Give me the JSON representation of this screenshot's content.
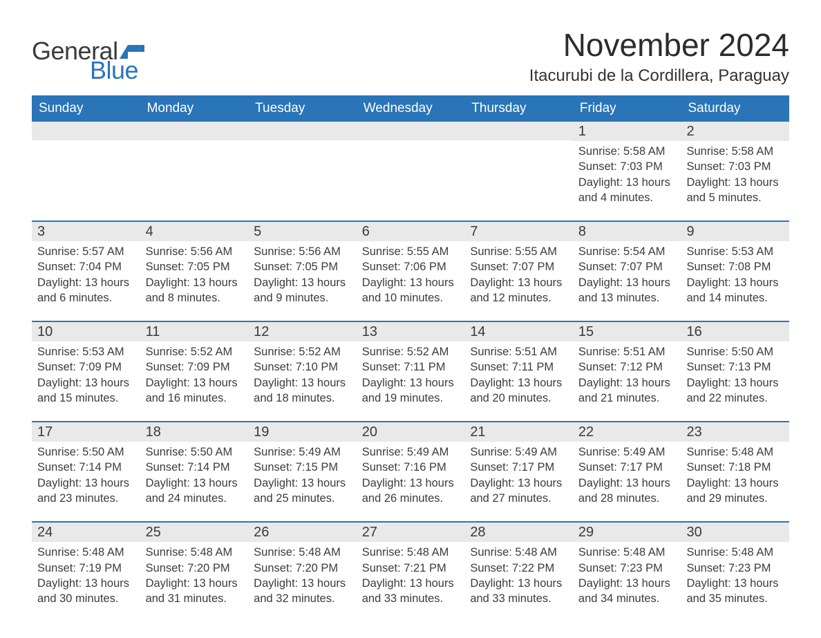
{
  "brand": {
    "word1": "General",
    "word2": "Blue",
    "text_color": "#3a3a3a",
    "accent_color": "#2a74b8"
  },
  "title": "November 2024",
  "location": "Itacurubi de la Cordillera, Paraguay",
  "colors": {
    "header_bg": "#2a74b8",
    "header_text": "#ffffff",
    "daynum_bg": "#e9e9e9",
    "week_divider": "#2a74b8",
    "body_text": "#3c3c3c",
    "page_bg": "#ffffff"
  },
  "typography": {
    "title_fontsize": 46,
    "location_fontsize": 24,
    "header_fontsize": 19,
    "daynum_fontsize": 20,
    "body_fontsize": 16.5
  },
  "day_names": [
    "Sunday",
    "Monday",
    "Tuesday",
    "Wednesday",
    "Thursday",
    "Friday",
    "Saturday"
  ],
  "labels": {
    "sunrise": "Sunrise:",
    "sunset": "Sunset:",
    "daylight": "Daylight:"
  },
  "weeks": [
    [
      null,
      null,
      null,
      null,
      null,
      {
        "n": "1",
        "sunrise": "5:58 AM",
        "sunset": "7:03 PM",
        "daylight": "13 hours and 4 minutes."
      },
      {
        "n": "2",
        "sunrise": "5:58 AM",
        "sunset": "7:03 PM",
        "daylight": "13 hours and 5 minutes."
      }
    ],
    [
      {
        "n": "3",
        "sunrise": "5:57 AM",
        "sunset": "7:04 PM",
        "daylight": "13 hours and 6 minutes."
      },
      {
        "n": "4",
        "sunrise": "5:56 AM",
        "sunset": "7:05 PM",
        "daylight": "13 hours and 8 minutes."
      },
      {
        "n": "5",
        "sunrise": "5:56 AM",
        "sunset": "7:05 PM",
        "daylight": "13 hours and 9 minutes."
      },
      {
        "n": "6",
        "sunrise": "5:55 AM",
        "sunset": "7:06 PM",
        "daylight": "13 hours and 10 minutes."
      },
      {
        "n": "7",
        "sunrise": "5:55 AM",
        "sunset": "7:07 PM",
        "daylight": "13 hours and 12 minutes."
      },
      {
        "n": "8",
        "sunrise": "5:54 AM",
        "sunset": "7:07 PM",
        "daylight": "13 hours and 13 minutes."
      },
      {
        "n": "9",
        "sunrise": "5:53 AM",
        "sunset": "7:08 PM",
        "daylight": "13 hours and 14 minutes."
      }
    ],
    [
      {
        "n": "10",
        "sunrise": "5:53 AM",
        "sunset": "7:09 PM",
        "daylight": "13 hours and 15 minutes."
      },
      {
        "n": "11",
        "sunrise": "5:52 AM",
        "sunset": "7:09 PM",
        "daylight": "13 hours and 16 minutes."
      },
      {
        "n": "12",
        "sunrise": "5:52 AM",
        "sunset": "7:10 PM",
        "daylight": "13 hours and 18 minutes."
      },
      {
        "n": "13",
        "sunrise": "5:52 AM",
        "sunset": "7:11 PM",
        "daylight": "13 hours and 19 minutes."
      },
      {
        "n": "14",
        "sunrise": "5:51 AM",
        "sunset": "7:11 PM",
        "daylight": "13 hours and 20 minutes."
      },
      {
        "n": "15",
        "sunrise": "5:51 AM",
        "sunset": "7:12 PM",
        "daylight": "13 hours and 21 minutes."
      },
      {
        "n": "16",
        "sunrise": "5:50 AM",
        "sunset": "7:13 PM",
        "daylight": "13 hours and 22 minutes."
      }
    ],
    [
      {
        "n": "17",
        "sunrise": "5:50 AM",
        "sunset": "7:14 PM",
        "daylight": "13 hours and 23 minutes."
      },
      {
        "n": "18",
        "sunrise": "5:50 AM",
        "sunset": "7:14 PM",
        "daylight": "13 hours and 24 minutes."
      },
      {
        "n": "19",
        "sunrise": "5:49 AM",
        "sunset": "7:15 PM",
        "daylight": "13 hours and 25 minutes."
      },
      {
        "n": "20",
        "sunrise": "5:49 AM",
        "sunset": "7:16 PM",
        "daylight": "13 hours and 26 minutes."
      },
      {
        "n": "21",
        "sunrise": "5:49 AM",
        "sunset": "7:17 PM",
        "daylight": "13 hours and 27 minutes."
      },
      {
        "n": "22",
        "sunrise": "5:49 AM",
        "sunset": "7:17 PM",
        "daylight": "13 hours and 28 minutes."
      },
      {
        "n": "23",
        "sunrise": "5:48 AM",
        "sunset": "7:18 PM",
        "daylight": "13 hours and 29 minutes."
      }
    ],
    [
      {
        "n": "24",
        "sunrise": "5:48 AM",
        "sunset": "7:19 PM",
        "daylight": "13 hours and 30 minutes."
      },
      {
        "n": "25",
        "sunrise": "5:48 AM",
        "sunset": "7:20 PM",
        "daylight": "13 hours and 31 minutes."
      },
      {
        "n": "26",
        "sunrise": "5:48 AM",
        "sunset": "7:20 PM",
        "daylight": "13 hours and 32 minutes."
      },
      {
        "n": "27",
        "sunrise": "5:48 AM",
        "sunset": "7:21 PM",
        "daylight": "13 hours and 33 minutes."
      },
      {
        "n": "28",
        "sunrise": "5:48 AM",
        "sunset": "7:22 PM",
        "daylight": "13 hours and 33 minutes."
      },
      {
        "n": "29",
        "sunrise": "5:48 AM",
        "sunset": "7:23 PM",
        "daylight": "13 hours and 34 minutes."
      },
      {
        "n": "30",
        "sunrise": "5:48 AM",
        "sunset": "7:23 PM",
        "daylight": "13 hours and 35 minutes."
      }
    ]
  ]
}
